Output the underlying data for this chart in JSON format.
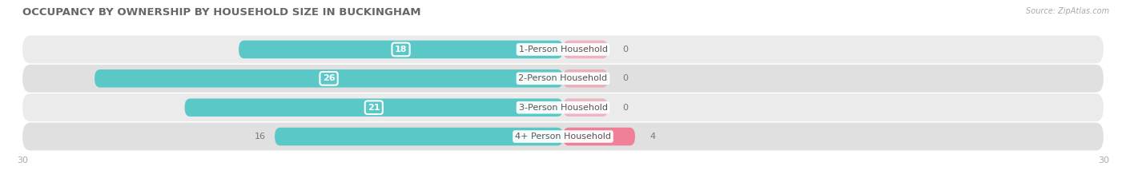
{
  "title": "OCCUPANCY BY OWNERSHIP BY HOUSEHOLD SIZE IN BUCKINGHAM",
  "source": "Source: ZipAtlas.com",
  "categories": [
    "1-Person Household",
    "2-Person Household",
    "3-Person Household",
    "4+ Person Household"
  ],
  "owner_values": [
    18,
    26,
    21,
    16
  ],
  "renter_values": [
    0,
    0,
    0,
    4
  ],
  "owner_color": "#5bc8c8",
  "renter_color": "#f08098",
  "row_bg_colors": [
    "#ebebeb",
    "#e0e0e0",
    "#ebebeb",
    "#e0e0e0"
  ],
  "row_stripe_colors": [
    "#f5f5f5",
    "#eeeeee",
    "#f5f5f5",
    "#eeeeee"
  ],
  "xlim": [
    -30,
    30
  ],
  "x_tick_labels": [
    "30",
    "30"
  ],
  "title_fontsize": 9.5,
  "label_fontsize": 8,
  "value_fontsize": 8,
  "tick_fontsize": 8,
  "bar_height": 0.62,
  "figsize": [
    14.06,
    2.33
  ],
  "dpi": 100,
  "owner_label_inside": [
    true,
    true,
    true,
    false
  ],
  "renter_label_right": [
    true,
    true,
    true,
    true
  ]
}
